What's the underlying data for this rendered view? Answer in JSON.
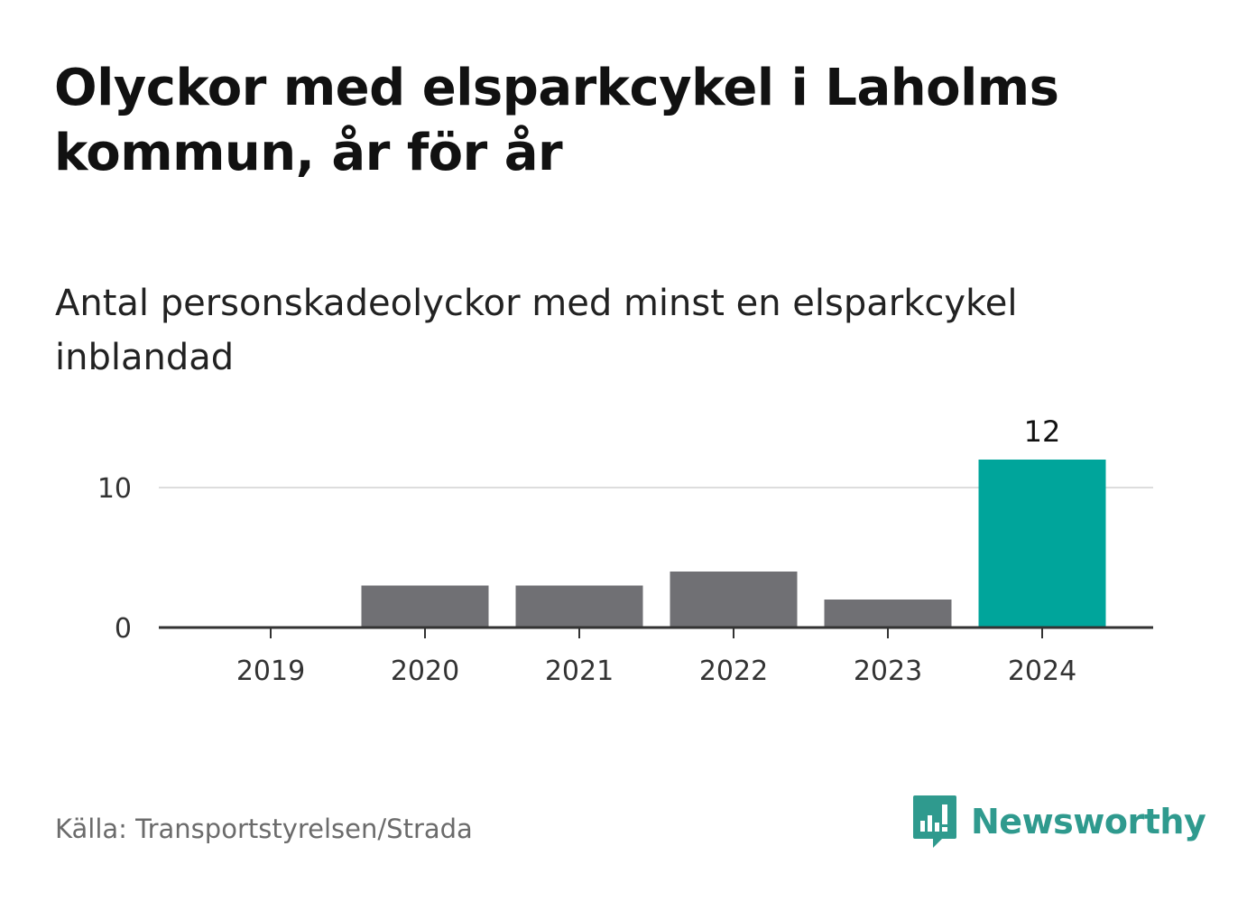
{
  "header": {
    "title": "Olyckor med elsparkcykel i Laholms kommun, år för år",
    "subtitle": "Antal personskadeolyckor med minst en elsparkcykel inblandad"
  },
  "footer": {
    "source": "Källa: Transportstyrelsen/Strada",
    "brand": "Newsworthy"
  },
  "colors": {
    "bar_default": "#707074",
    "bar_highlight": "#00a59b",
    "grid": "#dddddd",
    "axis": "#333333",
    "brand": "#2f9a8e"
  },
  "chart_data": {
    "type": "bar",
    "title": "Olyckor med elsparkcykel i Laholms kommun, år för år",
    "subtitle": "Antal personskadeolyckor med minst en elsparkcykel inblandad",
    "xlabel": "",
    "ylabel": "",
    "categories": [
      "2019",
      "2020",
      "2021",
      "2022",
      "2023",
      "2024"
    ],
    "values": [
      0,
      3,
      3,
      4,
      2,
      12
    ],
    "highlight_index": 5,
    "data_labels": [
      {
        "index": 5,
        "text": "12"
      }
    ],
    "ylim": [
      0,
      12
    ],
    "yticks": [
      0,
      10
    ],
    "grid": true,
    "legend": "none"
  }
}
